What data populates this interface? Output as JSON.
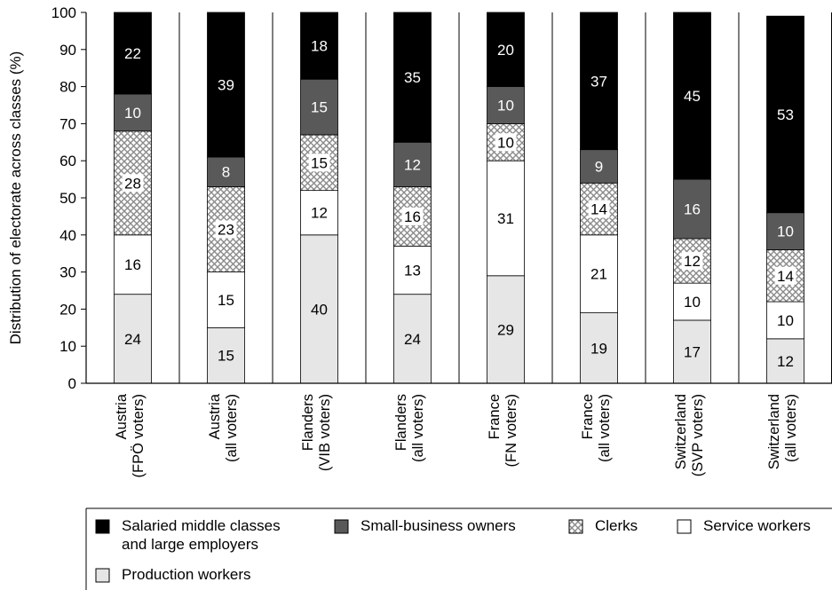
{
  "chart_data": {
    "type": "bar",
    "stacked": true,
    "ylabel": "Distribution of electorate across classes (%)",
    "ylim": [
      0,
      100
    ],
    "yticks": [
      0,
      10,
      20,
      30,
      40,
      50,
      60,
      70,
      80,
      90,
      100
    ],
    "grid": "vertical separators between categories",
    "categories": [
      [
        "Austria",
        "(FPÖ voters)"
      ],
      [
        "Austria",
        "(all voters)"
      ],
      [
        "Flanders",
        "(VIB voters)"
      ],
      [
        "Flanders",
        "(all voters)"
      ],
      [
        "France",
        "(FN voters)"
      ],
      [
        "France",
        "(all voters)"
      ],
      [
        "Switzerland",
        "(SVP voters)"
      ],
      [
        "Switzerland",
        "(all voters)"
      ]
    ],
    "series": [
      {
        "name": "Production workers",
        "fill": "#e6e6e6",
        "values": [
          24,
          15,
          40,
          24,
          29,
          19,
          17,
          12
        ]
      },
      {
        "name": "Service workers",
        "fill": "#ffffff",
        "values": [
          16,
          15,
          12,
          13,
          31,
          21,
          10,
          10
        ]
      },
      {
        "name": "Clerks",
        "fill": "crosshatch",
        "values": [
          28,
          23,
          15,
          16,
          10,
          14,
          12,
          14
        ]
      },
      {
        "name": "Small-business owners",
        "fill": "#595959",
        "values": [
          10,
          8,
          15,
          12,
          10,
          9,
          16,
          10
        ]
      },
      {
        "name": "Salaried middle classes and large employers",
        "fill": "#000000",
        "values": [
          22,
          39,
          18,
          35,
          20,
          37,
          45,
          53
        ]
      }
    ],
    "legend": {
      "placement": "bottom",
      "entries": [
        {
          "series": 4,
          "lines": [
            "Salaried middle classes",
            "and large employers"
          ]
        },
        {
          "series": 3,
          "lines": [
            "Small-business owners"
          ]
        },
        {
          "series": 2,
          "lines": [
            "Clerks"
          ]
        },
        {
          "series": 1,
          "lines": [
            "Service workers"
          ]
        },
        {
          "series": 0,
          "lines": [
            "Production workers"
          ]
        }
      ]
    }
  }
}
